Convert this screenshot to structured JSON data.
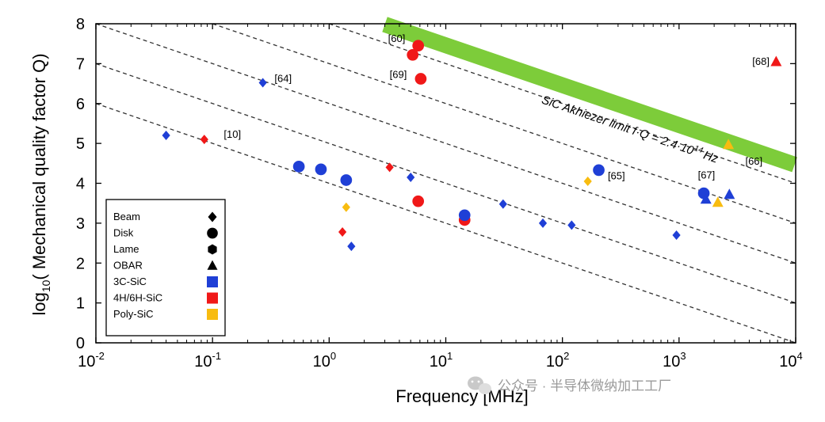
{
  "chart_data": {
    "type": "scatter",
    "title": "",
    "xlabel": "Frequency [MHz]",
    "ylabel": "log10( Mechanical quality factor Q)",
    "ylabel_parts": {
      "prefix": "log",
      "sub": "10",
      "suffix": "( Mechanical quality factor Q)"
    },
    "xscale": "log",
    "xlim_exp": [
      -2,
      4
    ],
    "ylim": [
      0,
      8
    ],
    "x_ticks": [
      {
        "base": "10",
        "exp": "-2"
      },
      {
        "base": "10",
        "exp": "-1"
      },
      {
        "base": "10",
        "exp": "0"
      },
      {
        "base": "10",
        "exp": "1"
      },
      {
        "base": "10",
        "exp": "2"
      },
      {
        "base": "10",
        "exp": "3"
      },
      {
        "base": "10",
        "exp": "4"
      }
    ],
    "y_ticks": [
      "0",
      "1",
      "2",
      "3",
      "4",
      "5",
      "6",
      "7",
      "8"
    ],
    "fq_lines_log10": [
      10,
      11,
      12,
      13,
      14
    ],
    "akhiezer_limit": {
      "label_main": "SiC Akhiezer limit f·Q = 2.4·10",
      "label_sup": "14",
      "label_end": "Hz",
      "x_range": [
        3.0,
        9800
      ],
      "color": "#7dcc3a"
    },
    "colors": {
      "3C-SiC": "#1f3fd6",
      "4H/6H-SiC": "#f01818",
      "Poly-SiC": "#f8bc10"
    },
    "legend": {
      "position": "bottom-left",
      "shapes": [
        {
          "label": "Beam",
          "shape": "diamond"
        },
        {
          "label": "Disk",
          "shape": "circle"
        },
        {
          "label": "Lame",
          "shape": "hexagon"
        },
        {
          "label": "OBAR",
          "shape": "triangle"
        }
      ],
      "materials": [
        {
          "label": "3C-SiC"
        },
        {
          "label": "4H/6H-SiC"
        },
        {
          "label": "Poly-SiC"
        }
      ]
    },
    "points": [
      {
        "f": 0.04,
        "q": 5.2,
        "shape": "diamond",
        "material": "3C-SiC"
      },
      {
        "f": 0.27,
        "q": 6.52,
        "shape": "diamond",
        "material": "3C-SiC"
      },
      {
        "f": 0.085,
        "q": 5.1,
        "shape": "diamond",
        "material": "4H/6H-SiC"
      },
      {
        "f": 0.55,
        "q": 4.42,
        "shape": "circle",
        "material": "3C-SiC"
      },
      {
        "f": 0.85,
        "q": 4.35,
        "shape": "circle",
        "material": "3C-SiC"
      },
      {
        "f": 1.4,
        "q": 4.08,
        "shape": "circle",
        "material": "3C-SiC"
      },
      {
        "f": 1.4,
        "q": 3.4,
        "shape": "diamond",
        "material": "Poly-SiC"
      },
      {
        "f": 1.3,
        "q": 2.78,
        "shape": "diamond",
        "material": "4H/6H-SiC"
      },
      {
        "f": 1.55,
        "q": 2.42,
        "shape": "diamond",
        "material": "3C-SiC"
      },
      {
        "f": 3.3,
        "q": 4.4,
        "shape": "diamond",
        "material": "4H/6H-SiC"
      },
      {
        "f": 5.0,
        "q": 4.15,
        "shape": "diamond",
        "material": "3C-SiC"
      },
      {
        "f": 5.8,
        "q": 3.55,
        "shape": "circle",
        "material": "4H/6H-SiC"
      },
      {
        "f": 5.2,
        "q": 7.22,
        "shape": "circle",
        "material": "4H/6H-SiC"
      },
      {
        "f": 5.8,
        "q": 7.45,
        "shape": "circle",
        "material": "4H/6H-SiC"
      },
      {
        "f": 6.1,
        "q": 6.62,
        "shape": "circle",
        "material": "4H/6H-SiC"
      },
      {
        "f": 14.5,
        "q": 3.08,
        "shape": "circle",
        "material": "4H/6H-SiC"
      },
      {
        "f": 14.5,
        "q": 3.2,
        "shape": "circle",
        "material": "3C-SiC"
      },
      {
        "f": 31,
        "q": 3.48,
        "shape": "diamond",
        "material": "3C-SiC"
      },
      {
        "f": 68,
        "q": 3.0,
        "shape": "diamond",
        "material": "3C-SiC"
      },
      {
        "f": 120,
        "q": 2.95,
        "shape": "diamond",
        "material": "3C-SiC"
      },
      {
        "f": 165,
        "q": 4.05,
        "shape": "diamond",
        "material": "Poly-SiC"
      },
      {
        "f": 205,
        "q": 4.33,
        "shape": "circle",
        "material": "3C-SiC"
      },
      {
        "f": 950,
        "q": 2.7,
        "shape": "diamond",
        "material": "3C-SiC"
      },
      {
        "f": 1630,
        "q": 3.75,
        "shape": "circle",
        "material": "3C-SiC"
      },
      {
        "f": 1700,
        "q": 3.6,
        "shape": "triangle",
        "material": "3C-SiC"
      },
      {
        "f": 2150,
        "q": 3.52,
        "shape": "triangle",
        "material": "Poly-SiC"
      },
      {
        "f": 2700,
        "q": 3.72,
        "shape": "triangle",
        "material": "3C-SiC"
      },
      {
        "f": 2650,
        "q": 4.97,
        "shape": "triangle",
        "material": "Poly-SiC"
      },
      {
        "f": 6800,
        "q": 7.05,
        "shape": "triangle",
        "material": "4H/6H-SiC"
      }
    ],
    "annotations": [
      {
        "text": "[60]",
        "f": 3.2,
        "q": 7.62
      },
      {
        "text": "[69]",
        "f": 3.3,
        "q": 6.72
      },
      {
        "text": "[64]",
        "f": 0.34,
        "q": 6.62
      },
      {
        "text": "[10]",
        "f": 0.125,
        "q": 5.22
      },
      {
        "text": "[65]",
        "f": 245,
        "q": 4.18
      },
      {
        "text": "[67]",
        "f": 1450,
        "q": 4.2
      },
      {
        "text": "[66]",
        "f": 3700,
        "q": 4.55
      },
      {
        "text": "[68]",
        "f": 4250,
        "q": 7.05
      }
    ]
  },
  "watermark": {
    "icon": "wechat-icon",
    "text": "公众号 · 半导体微纳加工工厂"
  }
}
